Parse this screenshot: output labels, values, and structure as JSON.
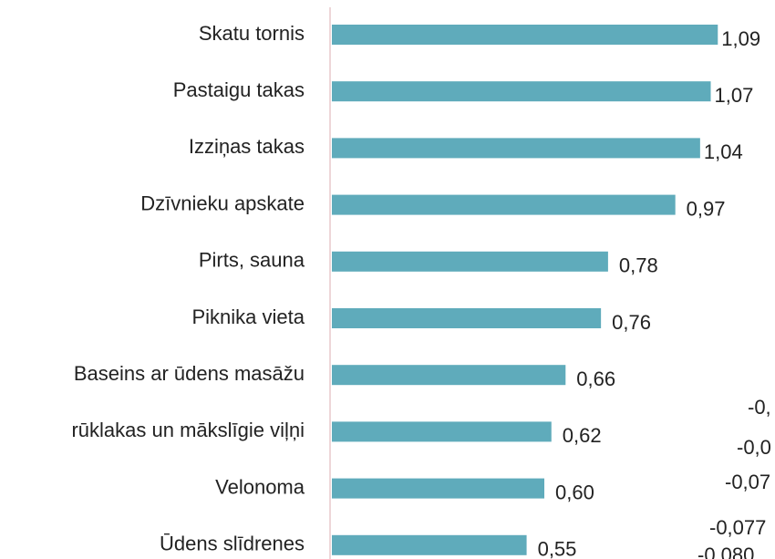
{
  "chart_data": {
    "type": "barh",
    "categories": [
      "Skatu tornis",
      "Pastaigu takas",
      "Izziņas takas",
      "Dzīvnieku apskate",
      "Pirts, sauna",
      "Piknika vieta",
      "Baseins ar ūdens masāžu",
      "rūklakas un mākslīgie viļņi",
      "Velonoma",
      "Ūdens slīdrenes"
    ],
    "values": [
      1.09,
      1.07,
      1.04,
      0.97,
      0.78,
      0.76,
      0.66,
      0.62,
      0.6,
      0.55
    ],
    "value_labels": [
      "1,09",
      "1,07",
      "1,04",
      "0,97",
      "0,78",
      "0,76",
      "0,66",
      "0,62",
      "0,60",
      "0,55"
    ],
    "color": "#5fabbb",
    "xlim": [
      0,
      1.2
    ],
    "annotations": [
      "-0,",
      "-0,0",
      "-0,07",
      "-0,077",
      "-0,080"
    ]
  }
}
